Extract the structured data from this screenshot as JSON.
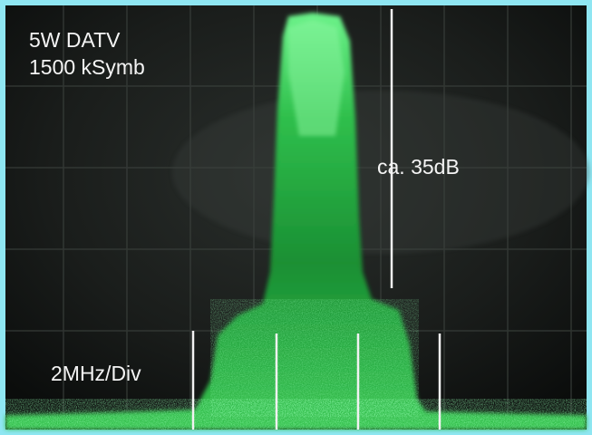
{
  "annotations": {
    "line1": "5W DATV",
    "line2": "1500 kSymb",
    "level": "ca. 35dB",
    "scale": "2MHz/Div"
  }
}
